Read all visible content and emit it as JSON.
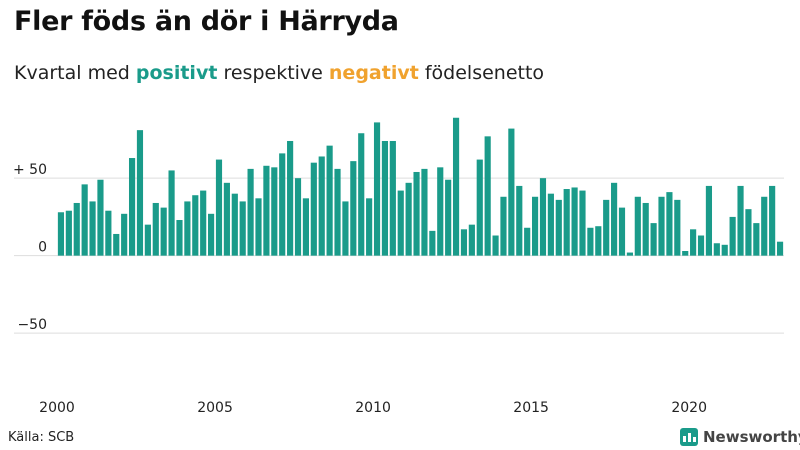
{
  "title": "Fler föds än dör i Härryda",
  "subtitle": {
    "prefix": "Kvartal med ",
    "positive_word": "positivt",
    "middle": " respektive ",
    "negative_word": "negativt",
    "suffix": " födelsenetto"
  },
  "source": "Källa: SCB",
  "brand": "Newsworthy",
  "colors": {
    "positive": "#1a9b8a",
    "negative": "#f0a22e",
    "grid": "#dddddd"
  },
  "chart_data": {
    "type": "bar",
    "title": "Fler föds än dör i Härryda",
    "ylabel": "",
    "xlabel": "",
    "ylim": [
      -88,
      94
    ],
    "y_ticks": [
      {
        "value": 50,
        "label": "+ 50"
      },
      {
        "value": 0,
        "label": "0"
      },
      {
        "value": -50,
        "label": "−50"
      }
    ],
    "x_ticks": [
      {
        "index": 0,
        "label": "2000"
      },
      {
        "index": 20,
        "label": "2005"
      },
      {
        "index": 40,
        "label": "2010"
      },
      {
        "index": 60,
        "label": "2015"
      },
      {
        "index": 80,
        "label": "2020"
      }
    ],
    "start": "2000 Q1",
    "values": [
      28,
      29,
      34,
      46,
      35,
      49,
      29,
      14,
      27,
      63,
      81,
      20,
      34,
      31,
      55,
      23,
      35,
      39,
      42,
      27,
      62,
      47,
      40,
      35,
      56,
      37,
      58,
      57,
      66,
      74,
      50,
      37,
      60,
      64,
      71,
      56,
      35,
      61,
      79,
      37,
      86,
      74,
      74,
      42,
      47,
      54,
      56,
      16,
      57,
      49,
      89,
      17,
      20,
      62,
      77,
      13,
      38,
      82,
      45,
      18,
      38,
      50,
      40,
      36,
      43,
      44,
      42,
      18,
      19,
      36,
      47,
      31,
      2,
      38,
      34,
      21,
      38,
      41,
      36,
      3,
      17,
      13,
      45,
      8,
      7,
      25,
      45,
      30,
      21,
      38,
      45,
      9
    ]
  }
}
